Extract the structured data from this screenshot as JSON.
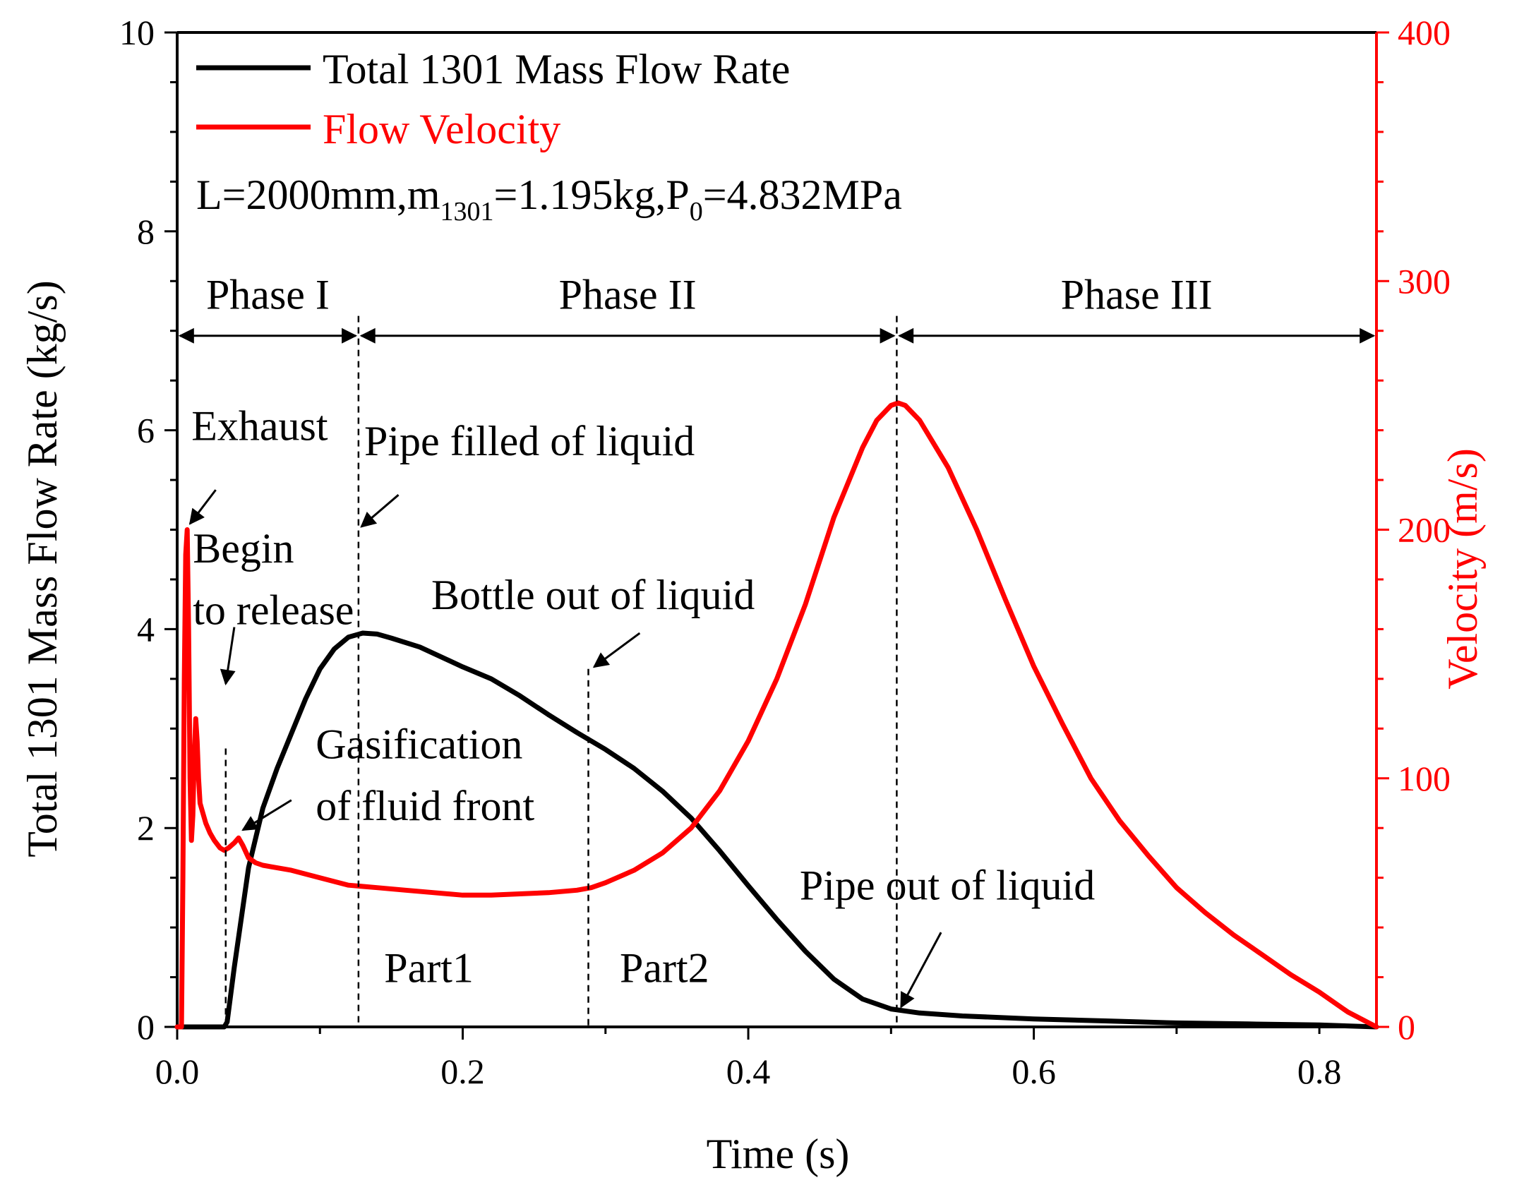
{
  "colors": {
    "black": "#000000",
    "red": "#ff0000"
  },
  "chart_data": {
    "type": "line",
    "xlabel": "Time (s)",
    "ylabel_left": "Total 1301 Mass Flow Rate (kg/s)",
    "ylabel_right": "Velocity (m/s)",
    "xlim": [
      0,
      0.84
    ],
    "ylim_left": [
      0,
      10
    ],
    "ylim_right": [
      0,
      400
    ],
    "x_ticks": [
      "0.0",
      "0.2",
      "0.4",
      "0.6",
      "0.8"
    ],
    "x_tick_values": [
      0,
      0.2,
      0.4,
      0.6,
      0.8
    ],
    "y_left_ticks": [
      "0",
      "2",
      "4",
      "6",
      "8",
      "10"
    ],
    "y_left_tick_values": [
      0,
      2,
      4,
      6,
      8,
      10
    ],
    "y_right_ticks": [
      "0",
      "100",
      "200",
      "300",
      "400"
    ],
    "y_right_tick_values": [
      0,
      100,
      200,
      300,
      400
    ],
    "legend": [
      {
        "label": "Total 1301 Mass Flow Rate",
        "color": "#000000"
      },
      {
        "label": "Flow Velocity",
        "color": "#ff0000"
      }
    ],
    "condition": {
      "prefix": "L=2000mm,m",
      "sub1": "1301",
      "mid": "=1.195kg,P",
      "sub2": "0",
      "suffix": "=4.832MPa"
    },
    "series": [
      {
        "name": "Total 1301 Mass Flow Rate",
        "axis": "left",
        "color": "#000000",
        "x": [
          0,
          0.033,
          0.035,
          0.04,
          0.05,
          0.06,
          0.07,
          0.08,
          0.09,
          0.1,
          0.11,
          0.12,
          0.13,
          0.14,
          0.15,
          0.17,
          0.2,
          0.22,
          0.24,
          0.26,
          0.28,
          0.3,
          0.32,
          0.34,
          0.36,
          0.38,
          0.4,
          0.42,
          0.44,
          0.46,
          0.48,
          0.5,
          0.52,
          0.55,
          0.6,
          0.65,
          0.7,
          0.75,
          0.8,
          0.84
        ],
        "y": [
          0,
          0,
          0.05,
          0.6,
          1.6,
          2.2,
          2.6,
          2.95,
          3.3,
          3.6,
          3.8,
          3.92,
          3.96,
          3.95,
          3.91,
          3.82,
          3.62,
          3.5,
          3.33,
          3.14,
          2.96,
          2.79,
          2.6,
          2.37,
          2.1,
          1.77,
          1.42,
          1.08,
          0.76,
          0.48,
          0.28,
          0.18,
          0.14,
          0.11,
          0.08,
          0.06,
          0.04,
          0.03,
          0.02,
          0.0
        ]
      },
      {
        "name": "Flow Velocity",
        "axis": "right",
        "color": "#ff0000",
        "x": [
          0,
          0.003,
          0.004,
          0.005,
          0.006,
          0.007,
          0.008,
          0.009,
          0.01,
          0.011,
          0.012,
          0.013,
          0.014,
          0.015,
          0.016,
          0.018,
          0.02,
          0.023,
          0.026,
          0.03,
          0.033,
          0.036,
          0.04,
          0.043,
          0.046,
          0.05,
          0.055,
          0.06,
          0.07,
          0.08,
          0.1,
          0.12,
          0.14,
          0.16,
          0.18,
          0.2,
          0.22,
          0.24,
          0.26,
          0.28,
          0.29,
          0.3,
          0.32,
          0.34,
          0.36,
          0.38,
          0.4,
          0.42,
          0.44,
          0.46,
          0.48,
          0.49,
          0.5,
          0.505,
          0.51,
          0.52,
          0.54,
          0.56,
          0.58,
          0.6,
          0.62,
          0.64,
          0.66,
          0.68,
          0.7,
          0.72,
          0.74,
          0.76,
          0.78,
          0.8,
          0.82,
          0.84
        ],
        "y": [
          0,
          0,
          60,
          140,
          190,
          200,
          160,
          100,
          75,
          85,
          110,
          124,
          115,
          100,
          90,
          86,
          82,
          78,
          75,
          72,
          71,
          72,
          74,
          76,
          73,
          68,
          66,
          65,
          64,
          63,
          60,
          57,
          56,
          55,
          54,
          53,
          53,
          53.5,
          54,
          55,
          56,
          58,
          63,
          70,
          80,
          95,
          115,
          140,
          170,
          205,
          233,
          244,
          250,
          251,
          250,
          244,
          225,
          200,
          172,
          145,
          122,
          100,
          83,
          69,
          56,
          46,
          37,
          29,
          21,
          14,
          6,
          0
        ]
      }
    ],
    "phases": [
      {
        "label": "Phase I",
        "start": 0,
        "end": 0.127
      },
      {
        "label": "Phase II",
        "start": 0.127,
        "end": 0.504
      },
      {
        "label": "Phase III",
        "start": 0.504,
        "end": 0.84
      }
    ],
    "phase_arrow_level": 6.95,
    "phase_label_level": 7.35,
    "dividers": [
      {
        "x": 0.127,
        "y_top": 7.15
      },
      {
        "x": 0.504,
        "y_top": 7.15
      },
      {
        "x": 0.034,
        "y_top": 2.8
      },
      {
        "x": 0.288,
        "y_top": 3.6
      }
    ],
    "annotations": [
      {
        "text": "Exhaust",
        "x": 0.01,
        "y": 5.9
      },
      {
        "text": "Begin",
        "x": 0.011,
        "y": 4.67
      },
      {
        "text": "to release",
        "x": 0.011,
        "y": 4.05
      },
      {
        "text": "Pipe filled of liquid",
        "x": 0.131,
        "y": 5.75
      },
      {
        "text": "Bottle out of liquid",
        "x": 0.178,
        "y": 4.2
      },
      {
        "text": "Gasification",
        "x": 0.097,
        "y": 2.7
      },
      {
        "text": "of fluid front",
        "x": 0.097,
        "y": 2.08
      },
      {
        "text": "Part1",
        "x": 0.145,
        "y": 0.45
      },
      {
        "text": "Part2",
        "x": 0.31,
        "y": 0.45
      },
      {
        "text": "Pipe out of liquid",
        "x": 0.436,
        "y": 1.28
      }
    ],
    "arrows": [
      {
        "from": [
          0.027,
          5.4
        ],
        "to": [
          0.009,
          5.06
        ]
      },
      {
        "from": [
          0.155,
          5.35
        ],
        "to": [
          0.129,
          5.03
        ]
      },
      {
        "from": [
          0.04,
          4.02
        ],
        "to": [
          0.034,
          3.45
        ]
      },
      {
        "from": [
          0.324,
          3.96
        ],
        "to": [
          0.292,
          3.62
        ]
      },
      {
        "from": [
          0.08,
          2.28
        ],
        "to": [
          0.046,
          1.98
        ]
      },
      {
        "from": [
          0.535,
          0.95
        ],
        "to": [
          0.507,
          0.2
        ]
      }
    ]
  }
}
